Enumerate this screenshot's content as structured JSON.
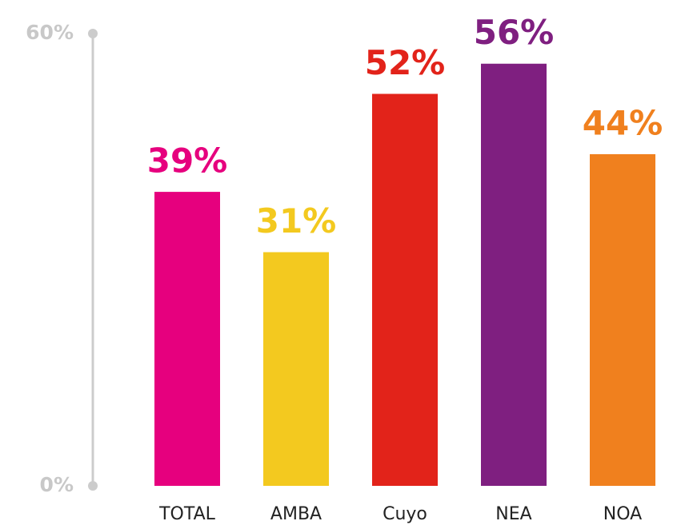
{
  "chart_data": {
    "type": "bar",
    "categories": [
      "TOTAL",
      "AMBA",
      "Cuyo",
      "NEA",
      "NOA"
    ],
    "values": [
      39,
      31,
      52,
      56,
      44
    ],
    "value_labels": [
      "39%",
      "31%",
      "52%",
      "56%",
      "44%"
    ],
    "colors": [
      "#e6007e",
      "#f3c91f",
      "#e2231a",
      "#7f1f80",
      "#f0801e"
    ],
    "ylim": [
      0,
      60
    ],
    "yticks": [
      {
        "value": 0,
        "label": "0%"
      },
      {
        "value": 60,
        "label": "60%"
      }
    ]
  }
}
